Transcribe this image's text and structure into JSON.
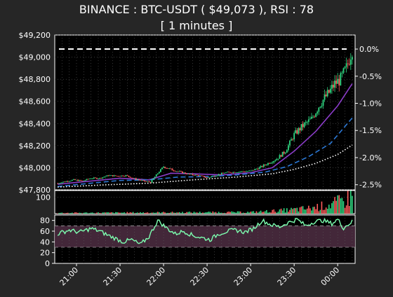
{
  "title": {
    "line1": "BINANCE : BTC-USDT ( $49,073 ), RSI : 78",
    "line2": "[ 1 minutes ]"
  },
  "colors": {
    "background": "#262626",
    "panel": "#000000",
    "grid": "#5a5a5a",
    "text": "#ffffff",
    "up": "#2fd680",
    "down": "#ff5b5b",
    "ma_fast": "#8a3cc8",
    "ma_mid": "#2b78d4",
    "ma_slow": "#ffffff",
    "rsi_line": "#7dffb0",
    "rsi_band": "#4a2b3f"
  },
  "chart_data": [
    {
      "type": "candlestick",
      "panel": "price",
      "x_ticks": [
        "21:00",
        "21:30",
        "22:00",
        "22:30",
        "23:00",
        "23:30",
        "00:00"
      ],
      "x_tick_minutes": [
        1260,
        1290,
        1320,
        1350,
        1380,
        1410,
        1440
      ],
      "x_range_minutes": [
        1245,
        1452
      ],
      "ylim": [
        47800,
        49200
      ],
      "y_ticks": [
        47800,
        48000,
        48200,
        48400,
        48600,
        48800,
        49000,
        49200
      ],
      "y_tick_labels": [
        "$47,800",
        "$48,000",
        "$48,200",
        "$48,400",
        "$48,600",
        "$48,800",
        "$49,000",
        "$49,200"
      ],
      "y2_ticks": [
        0.0,
        -0.5,
        -1.0,
        -1.5,
        -2.0,
        -2.5
      ],
      "y2_tick_labels": [
        "0.0%",
        "-0.5%",
        "-1.0%",
        "-1.5%",
        "-2.0%",
        "-2.5%"
      ],
      "last_price": 49073,
      "reference_line": 49073,
      "close_path": [
        {
          "t": 1247,
          "v": 47860
        },
        {
          "t": 1252,
          "v": 47875
        },
        {
          "t": 1258,
          "v": 47890
        },
        {
          "t": 1264,
          "v": 47880
        },
        {
          "t": 1270,
          "v": 47905
        },
        {
          "t": 1276,
          "v": 47905
        },
        {
          "t": 1282,
          "v": 47930
        },
        {
          "t": 1288,
          "v": 47925
        },
        {
          "t": 1294,
          "v": 47930
        },
        {
          "t": 1300,
          "v": 47900
        },
        {
          "t": 1306,
          "v": 47880
        },
        {
          "t": 1311,
          "v": 47870
        },
        {
          "t": 1316,
          "v": 47950
        },
        {
          "t": 1320,
          "v": 48010
        },
        {
          "t": 1326,
          "v": 47980
        },
        {
          "t": 1332,
          "v": 47960
        },
        {
          "t": 1338,
          "v": 47940
        },
        {
          "t": 1344,
          "v": 47930
        },
        {
          "t": 1350,
          "v": 47910
        },
        {
          "t": 1356,
          "v": 47930
        },
        {
          "t": 1362,
          "v": 47955
        },
        {
          "t": 1368,
          "v": 47960
        },
        {
          "t": 1374,
          "v": 47965
        },
        {
          "t": 1380,
          "v": 47970
        },
        {
          "t": 1386,
          "v": 48000
        },
        {
          "t": 1392,
          "v": 48040
        },
        {
          "t": 1398,
          "v": 48080
        },
        {
          "t": 1404,
          "v": 48150
        },
        {
          "t": 1410,
          "v": 48300
        },
        {
          "t": 1416,
          "v": 48380
        },
        {
          "t": 1422,
          "v": 48440
        },
        {
          "t": 1428,
          "v": 48580
        },
        {
          "t": 1434,
          "v": 48680
        },
        {
          "t": 1438,
          "v": 48760
        },
        {
          "t": 1442,
          "v": 48800
        },
        {
          "t": 1446,
          "v": 48900
        },
        {
          "t": 1450,
          "v": 49073
        }
      ],
      "series": [
        {
          "name": "",
          "style": "solid",
          "color": "#8a3cc8",
          "points": [
            {
              "t": 1247,
              "v": 47850
            },
            {
              "t": 1270,
              "v": 47880
            },
            {
              "t": 1290,
              "v": 47905
            },
            {
              "t": 1310,
              "v": 47890
            },
            {
              "t": 1325,
              "v": 47950
            },
            {
              "t": 1340,
              "v": 47945
            },
            {
              "t": 1360,
              "v": 47935
            },
            {
              "t": 1380,
              "v": 47955
            },
            {
              "t": 1395,
              "v": 48000
            },
            {
              "t": 1410,
              "v": 48150
            },
            {
              "t": 1425,
              "v": 48330
            },
            {
              "t": 1440,
              "v": 48560
            },
            {
              "t": 1450,
              "v": 48760
            }
          ]
        },
        {
          "name": "",
          "style": "dashed",
          "color": "#2b78d4",
          "points": [
            {
              "t": 1247,
              "v": 47830
            },
            {
              "t": 1270,
              "v": 47860
            },
            {
              "t": 1290,
              "v": 47885
            },
            {
              "t": 1310,
              "v": 47890
            },
            {
              "t": 1330,
              "v": 47915
            },
            {
              "t": 1350,
              "v": 47920
            },
            {
              "t": 1370,
              "v": 47935
            },
            {
              "t": 1390,
              "v": 47960
            },
            {
              "t": 1405,
              "v": 48010
            },
            {
              "t": 1420,
              "v": 48100
            },
            {
              "t": 1435,
              "v": 48220
            },
            {
              "t": 1450,
              "v": 48450
            }
          ]
        },
        {
          "name": "",
          "style": "dotted",
          "color": "#ffffff",
          "points": [
            {
              "t": 1247,
              "v": 47825
            },
            {
              "t": 1280,
              "v": 47845
            },
            {
              "t": 1310,
              "v": 47860
            },
            {
              "t": 1340,
              "v": 47890
            },
            {
              "t": 1370,
              "v": 47915
            },
            {
              "t": 1395,
              "v": 47945
            },
            {
              "t": 1410,
              "v": 47985
            },
            {
              "t": 1425,
              "v": 48040
            },
            {
              "t": 1440,
              "v": 48120
            },
            {
              "t": 1450,
              "v": 48205
            }
          ]
        }
      ]
    },
    {
      "type": "bar",
      "panel": "volume",
      "y_ticks": [
        100
      ],
      "y_tick_labels": [
        "100"
      ],
      "ylim": [
        0,
        140
      ],
      "profile": [
        {
          "t": 1247,
          "v": 5
        },
        {
          "t": 1320,
          "v": 8
        },
        {
          "t": 1380,
          "v": 10
        },
        {
          "t": 1400,
          "v": 20
        },
        {
          "t": 1420,
          "v": 35
        },
        {
          "t": 1435,
          "v": 60
        },
        {
          "t": 1445,
          "v": 90
        },
        {
          "t": 1450,
          "v": 120
        }
      ]
    },
    {
      "type": "line",
      "panel": "rsi",
      "ylim": [
        0,
        90
      ],
      "y_ticks": [
        0,
        20,
        40,
        60,
        80
      ],
      "y_tick_labels": [
        "0",
        "20",
        "40",
        "60",
        "80"
      ],
      "band": [
        30,
        70
      ],
      "last_value": 78,
      "points": [
        {
          "t": 1247,
          "v": 55
        },
        {
          "t": 1255,
          "v": 62
        },
        {
          "t": 1262,
          "v": 58
        },
        {
          "t": 1270,
          "v": 65
        },
        {
          "t": 1276,
          "v": 60
        },
        {
          "t": 1282,
          "v": 52
        },
        {
          "t": 1288,
          "v": 45
        },
        {
          "t": 1292,
          "v": 40
        },
        {
          "t": 1298,
          "v": 44
        },
        {
          "t": 1304,
          "v": 35
        },
        {
          "t": 1310,
          "v": 50
        },
        {
          "t": 1316,
          "v": 80
        },
        {
          "t": 1322,
          "v": 66
        },
        {
          "t": 1328,
          "v": 55
        },
        {
          "t": 1334,
          "v": 60
        },
        {
          "t": 1340,
          "v": 52
        },
        {
          "t": 1346,
          "v": 48
        },
        {
          "t": 1352,
          "v": 44
        },
        {
          "t": 1358,
          "v": 55
        },
        {
          "t": 1364,
          "v": 60
        },
        {
          "t": 1370,
          "v": 62
        },
        {
          "t": 1376,
          "v": 58
        },
        {
          "t": 1382,
          "v": 65
        },
        {
          "t": 1388,
          "v": 80
        },
        {
          "t": 1394,
          "v": 72
        },
        {
          "t": 1400,
          "v": 68
        },
        {
          "t": 1406,
          "v": 76
        },
        {
          "t": 1412,
          "v": 82
        },
        {
          "t": 1418,
          "v": 70
        },
        {
          "t": 1424,
          "v": 78
        },
        {
          "t": 1430,
          "v": 80
        },
        {
          "t": 1436,
          "v": 74
        },
        {
          "t": 1440,
          "v": 82
        },
        {
          "t": 1444,
          "v": 66
        },
        {
          "t": 1448,
          "v": 74
        },
        {
          "t": 1450,
          "v": 78
        }
      ]
    }
  ]
}
